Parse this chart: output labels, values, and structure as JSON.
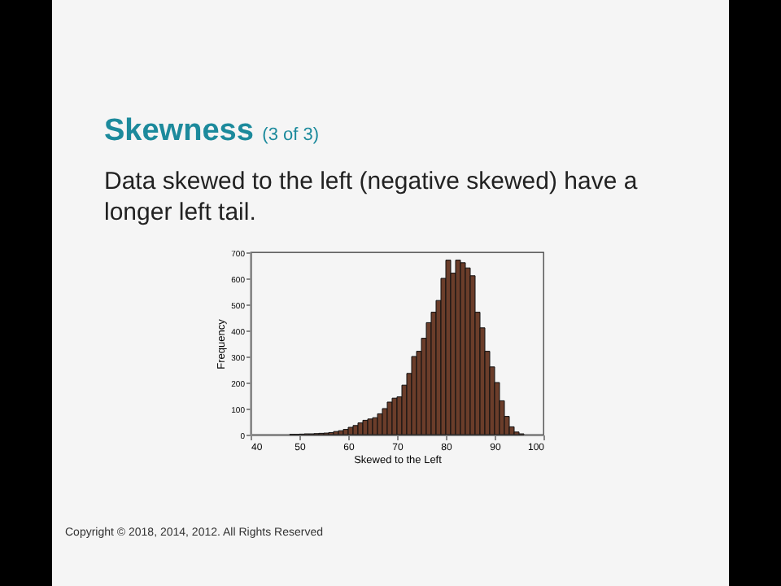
{
  "chart_data": {
    "type": "histogram",
    "title": "Skewness",
    "subtitle": "(3 of 3)",
    "annotations": [
      "Data skewed to the left (negative skewed) have a longer left tail.",
      "Copyright © 2018, 2014, 2012. All Rights Reserved"
    ],
    "xlabel": "Skewed to the Left",
    "ylabel": "Frequency",
    "bins": [
      48,
      49,
      50,
      51,
      52,
      53,
      54,
      55,
      56,
      57,
      58,
      59,
      60,
      61,
      62,
      63,
      64,
      65,
      66,
      67,
      68,
      69,
      70,
      71,
      72,
      73,
      74,
      75,
      76,
      77,
      78,
      79,
      80,
      81,
      82,
      83,
      84,
      85,
      86,
      87,
      88,
      89,
      90,
      91,
      92,
      93,
      94,
      95,
      96
    ],
    "values": [
      1,
      1,
      2,
      3,
      3,
      4,
      5,
      6,
      8,
      12,
      15,
      20,
      28,
      35,
      45,
      55,
      60,
      65,
      80,
      100,
      125,
      140,
      145,
      190,
      235,
      300,
      320,
      370,
      430,
      470,
      515,
      600,
      670,
      620,
      670,
      660,
      640,
      610,
      470,
      410,
      320,
      260,
      200,
      130,
      70,
      30,
      10,
      3
    ],
    "color": "#6b3d2a",
    "xlim": [
      40,
      100
    ],
    "xticks": [
      40,
      50,
      60,
      70,
      80,
      90,
      100
    ],
    "ylim": [
      0,
      700
    ],
    "yticks": [
      0,
      100,
      200,
      300,
      400,
      500,
      600,
      700
    ],
    "grid": false
  }
}
